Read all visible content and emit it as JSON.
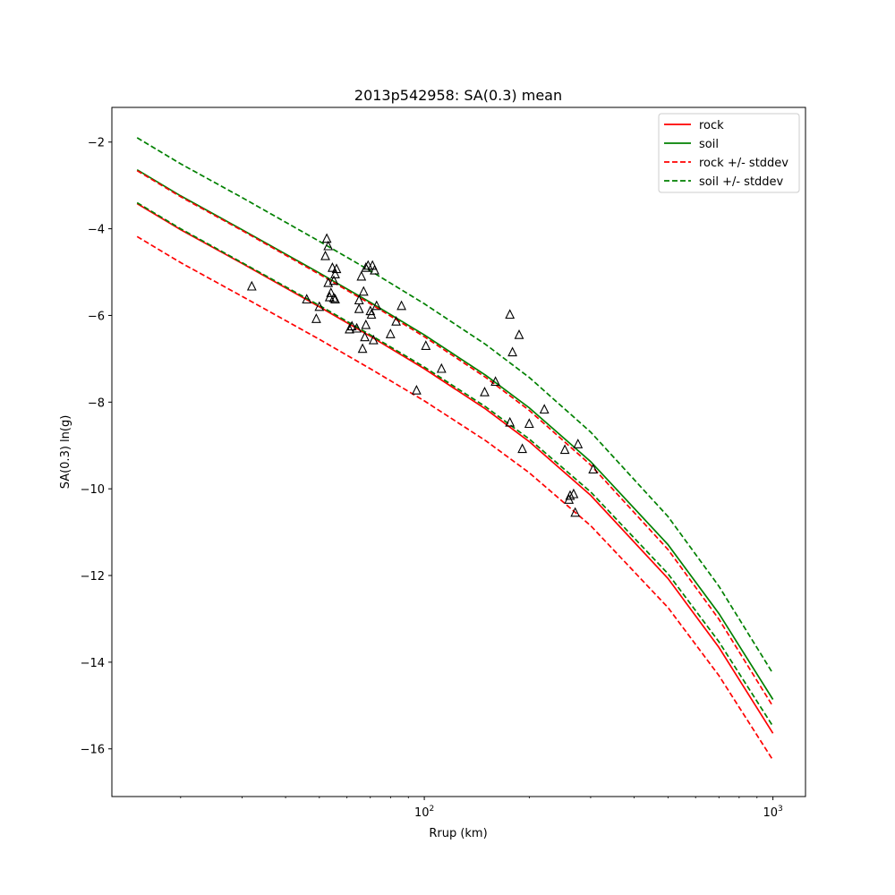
{
  "chart_data": {
    "type": "line",
    "title": "2013p542958: SA(0.3) mean",
    "xlabel": "Rrup (km)",
    "ylabel": "SA(0.3) ln(g)",
    "xscale": "log",
    "xlim": [
      12.7,
      1240
    ],
    "ylim": [
      -17.1,
      -1.2
    ],
    "xticks": [
      {
        "value": 100,
        "base": "10",
        "exp": "2"
      },
      {
        "value": 1000,
        "base": "10",
        "exp": "3"
      }
    ],
    "yticks": [
      -2,
      -4,
      -6,
      -8,
      -10,
      -12,
      -14,
      -16
    ],
    "ytick_labels": [
      "−2",
      "−4",
      "−6",
      "−8",
      "−10",
      "−12",
      "−14",
      "−16"
    ],
    "legend": {
      "position": "top-right"
    },
    "colors": {
      "rock": "#ff0000",
      "soil": "#008000",
      "points": "#000000"
    },
    "x": [
      15,
      20,
      30,
      50,
      70,
      100,
      150,
      200,
      300,
      500,
      700,
      1000
    ],
    "series": [
      {
        "name": "rock",
        "style": "solid",
        "color": "#ff0000",
        "values": [
          -3.42,
          -4.02,
          -4.8,
          -5.8,
          -6.48,
          -7.23,
          -8.16,
          -8.91,
          -10.15,
          -12.07,
          -13.66,
          -15.64
        ]
      },
      {
        "name": "soil",
        "style": "solid",
        "color": "#008000",
        "values": [
          -2.64,
          -3.24,
          -4.02,
          -5.02,
          -5.7,
          -6.45,
          -7.38,
          -8.13,
          -9.37,
          -11.29,
          -12.88,
          -14.86
        ]
      },
      {
        "name": "rock +/- stddev",
        "style": "dashed",
        "color": "#ff0000",
        "values": [
          -2.66,
          -3.26,
          -4.04,
          -5.05,
          -5.73,
          -6.49,
          -7.43,
          -8.19,
          -9.45,
          -11.4,
          -13.01,
          -15.02
        ]
      },
      {
        "name": "rock +/- stddev",
        "style": "dashed",
        "color": "#ff0000",
        "legend": false,
        "values": [
          -4.18,
          -4.78,
          -5.56,
          -6.55,
          -7.23,
          -7.97,
          -8.89,
          -9.63,
          -10.85,
          -12.74,
          -14.31,
          -16.26
        ]
      },
      {
        "name": "soil +/- stddev",
        "style": "dashed",
        "color": "#008000",
        "values": [
          -1.9,
          -2.5,
          -3.28,
          -4.29,
          -4.97,
          -5.73,
          -6.67,
          -7.43,
          -8.69,
          -10.64,
          -12.25,
          -14.26
        ]
      },
      {
        "name": "soil +/- stddev",
        "style": "dashed",
        "color": "#008000",
        "legend": false,
        "values": [
          -3.4,
          -4.0,
          -4.78,
          -5.77,
          -6.45,
          -7.19,
          -8.11,
          -8.85,
          -10.07,
          -11.96,
          -13.53,
          -15.48
        ]
      }
    ],
    "points": [
      [
        32,
        -5.33
      ],
      [
        46,
        -5.63
      ],
      [
        49,
        -6.08
      ],
      [
        50,
        -5.8
      ],
      [
        52,
        -4.63
      ],
      [
        52.5,
        -4.23
      ],
      [
        53,
        -4.4
      ],
      [
        53,
        -5.25
      ],
      [
        53.5,
        -5.58
      ],
      [
        54,
        -5.48
      ],
      [
        54.5,
        -4.9
      ],
      [
        55,
        -5.2
      ],
      [
        55,
        -5.6
      ],
      [
        55.5,
        -5.05
      ],
      [
        55.5,
        -5.63
      ],
      [
        56,
        -4.93
      ],
      [
        61,
        -6.32
      ],
      [
        62,
        -6.25
      ],
      [
        64,
        -6.3
      ],
      [
        65,
        -5.65
      ],
      [
        65,
        -5.85
      ],
      [
        66,
        -5.1
      ],
      [
        66.5,
        -6.77
      ],
      [
        67,
        -5.45
      ],
      [
        67.5,
        -6.5
      ],
      [
        68,
        -6.22
      ],
      [
        68,
        -4.9
      ],
      [
        69,
        -4.85
      ],
      [
        70,
        -5.9
      ],
      [
        70.5,
        -5.98
      ],
      [
        71,
        -4.85
      ],
      [
        71.5,
        -6.57
      ],
      [
        72,
        -4.96
      ],
      [
        73,
        -5.78
      ],
      [
        80,
        -6.43
      ],
      [
        83,
        -6.14
      ],
      [
        86,
        -5.78
      ],
      [
        95,
        -7.73
      ],
      [
        101,
        -6.7
      ],
      [
        112,
        -7.23
      ],
      [
        149,
        -7.77
      ],
      [
        160,
        -7.53
      ],
      [
        176,
        -5.98
      ],
      [
        176,
        -8.47
      ],
      [
        179,
        -6.85
      ],
      [
        187,
        -6.45
      ],
      [
        191,
        -9.08
      ],
      [
        200,
        -8.5
      ],
      [
        221,
        -8.17
      ],
      [
        253,
        -9.1
      ],
      [
        260,
        -10.25
      ],
      [
        262,
        -10.16
      ],
      [
        268,
        -10.12
      ],
      [
        271,
        -10.55
      ],
      [
        276,
        -8.97
      ],
      [
        305,
        -9.55
      ]
    ]
  }
}
